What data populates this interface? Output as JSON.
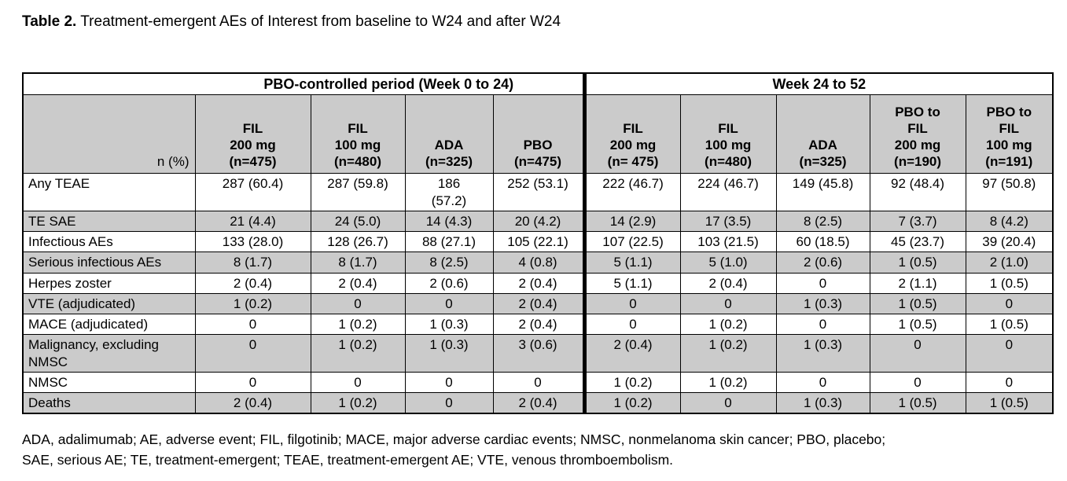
{
  "title": {
    "label": "Table 2.",
    "text": " Treatment-emergent AEs of Interest from baseline to W24 and after W24"
  },
  "table": {
    "group_headers": [
      {
        "label": "PBO-controlled period (Week 0 to 24)"
      },
      {
        "label": "Week 24 to 52"
      }
    ],
    "corner_label": "n (%)",
    "column_headers": [
      "FIL\n200 mg\n(n=475)",
      "FIL\n100 mg\n(n=480)",
      "ADA\n(n=325)",
      "PBO\n(n=475)",
      "FIL\n200 mg\n(n= 475)",
      "FIL\n100 mg\n(n=480)",
      "ADA\n(n=325)",
      "PBO to\nFIL\n200 mg\n(n=190)",
      "PBO to\nFIL\n100 mg\n(n=191)"
    ],
    "rows": [
      {
        "label": "Any TEAE",
        "shaded": false,
        "cells": [
          "287 (60.4)",
          "287 (59.8)",
          "186\n(57.2)",
          "252 (53.1)",
          "222 (46.7)",
          "224 (46.7)",
          "149 (45.8)",
          "92 (48.4)",
          "97 (50.8)"
        ]
      },
      {
        "label": "TE SAE",
        "shaded": true,
        "cells": [
          "21 (4.4)",
          "24 (5.0)",
          "14 (4.3)",
          "20 (4.2)",
          "14 (2.9)",
          "17 (3.5)",
          "8 (2.5)",
          "7 (3.7)",
          "8 (4.2)"
        ]
      },
      {
        "label": "Infectious AEs",
        "shaded": false,
        "cells": [
          "133 (28.0)",
          "128 (26.7)",
          "88 (27.1)",
          "105 (22.1)",
          "107 (22.5)",
          "103 (21.5)",
          "60 (18.5)",
          "45 (23.7)",
          "39 (20.4)"
        ]
      },
      {
        "label": "Serious infectious AEs",
        "shaded": true,
        "cells": [
          "8 (1.7)",
          "8 (1.7)",
          "8 (2.5)",
          "4 (0.8)",
          "5 (1.1)",
          "5 (1.0)",
          "2 (0.6)",
          "1 (0.5)",
          "2 (1.0)"
        ]
      },
      {
        "label": "Herpes zoster",
        "shaded": false,
        "cells": [
          "2 (0.4)",
          "2 (0.4)",
          "2 (0.6)",
          "2 (0.4)",
          "5 (1.1)",
          "2 (0.4)",
          "0",
          "2 (1.1)",
          "1 (0.5)"
        ]
      },
      {
        "label": "VTE (adjudicated)",
        "shaded": true,
        "cells": [
          "1 (0.2)",
          "0",
          "0",
          "2 (0.4)",
          "0",
          "0",
          "1 (0.3)",
          "1 (0.5)",
          "0"
        ]
      },
      {
        "label": "MACE (adjudicated)",
        "shaded": false,
        "cells": [
          "0",
          "1 (0.2)",
          "1 (0.3)",
          "2 (0.4)",
          "0",
          "1 (0.2)",
          "0",
          "1 (0.5)",
          "1 (0.5)"
        ]
      },
      {
        "label": "Malignancy, excluding NMSC",
        "shaded": true,
        "cells": [
          "0",
          "1 (0.2)",
          "1 (0.3)",
          "3 (0.6)",
          "2 (0.4)",
          "1 (0.2)",
          "1 (0.3)",
          "0",
          "0"
        ]
      },
      {
        "label": "NMSC",
        "shaded": false,
        "cells": [
          "0",
          "0",
          "0",
          "0",
          "1 (0.2)",
          "1 (0.2)",
          "0",
          "0",
          "0"
        ]
      },
      {
        "label": "Deaths",
        "shaded": true,
        "cells": [
          "2 (0.4)",
          "1 (0.2)",
          "0",
          "2 (0.4)",
          "1 (0.2)",
          "0",
          "1 (0.3)",
          "1 (0.5)",
          "1 (0.5)"
        ]
      }
    ]
  },
  "footnote": "ADA, adalimumab; AE, adverse event; FIL, filgotinib; MACE, major adverse cardiac events; NMSC, nonmelanoma skin cancer; PBO, placebo;\nSAE, serious AE; TE, treatment-emergent; TEAE, treatment-emergent AE; VTE, venous thromboembolism.",
  "colors": {
    "shaded_row": "#cbcbcb",
    "border": "#000000",
    "background": "#ffffff"
  }
}
